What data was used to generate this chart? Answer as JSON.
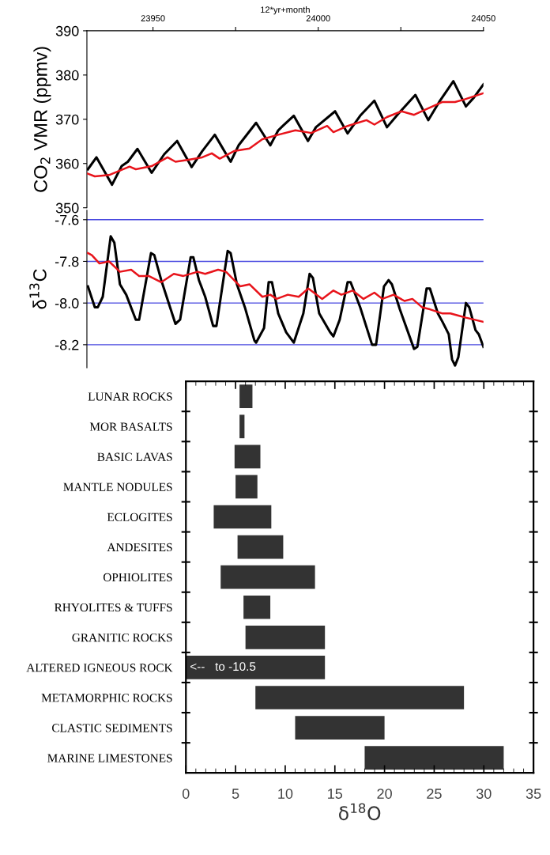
{
  "chart_data": [
    {
      "type": "line",
      "xlabel": "12*yr+month",
      "ylabel": "CO$_{2}$ VMR (ppmv)",
      "xlim": [
        23930,
        24050
      ],
      "xticks": [
        23950,
        {
          "value": 23975,
          "label": null
        },
        24000,
        {
          "value": 24025,
          "label": null
        },
        24050
      ],
      "ylim": [
        350,
        390
      ],
      "yticks": [
        350,
        360,
        370,
        380,
        390
      ],
      "series": [
        {
          "color": "#000000",
          "x": [
            23930.3,
            23932.9,
            23937.6,
            23940.5,
            23942.4,
            23945.3,
            23949.6,
            23953.4,
            23957.3,
            23961.7,
            23964.9,
            23968.7,
            23973.5,
            23975.9,
            23981.2,
            23985.5,
            23987.9,
            23989.3,
            23992.6,
            23996.9,
            23999.3,
            24005.1,
            24008.9,
            24012.7,
            24017.0,
            24020.8,
            24024.2,
            24029.4,
            24033.3,
            24036.6,
            24040.9,
            24044.7,
            24047.1,
            24050
          ],
          "values": [
            358.7,
            361.4,
            355.2,
            359.4,
            360.4,
            363.3,
            357.9,
            362.1,
            365.1,
            359.2,
            362.8,
            366.5,
            360.4,
            364.1,
            369.2,
            364.1,
            367.5,
            368.5,
            370.8,
            365.1,
            368.2,
            371.8,
            366.8,
            370.8,
            374.2,
            368.2,
            371.2,
            375.5,
            369.8,
            373.9,
            378.6,
            372.9,
            374.9,
            377.9
          ]
        },
        {
          "color": "#e8141b",
          "x": [
            23930.3,
            23932.4,
            23936.7,
            23940.0,
            23942.9,
            23944.8,
            23949.6,
            23954.4,
            23956.8,
            23961.1,
            23964.9,
            23967.8,
            23970.2,
            23974.5,
            23979.2,
            23983.1,
            23987.9,
            23993.1,
            23997.9,
            24002.7,
            24004.6,
            24008.9,
            24014.6,
            24017.0,
            24020.8,
            24025.2,
            24029.0,
            24032.8,
            24037.6,
            24041.4,
            24044.3,
            24050
          ],
          "values": [
            357.7,
            357.1,
            357.4,
            358.4,
            359.3,
            358.7,
            359.4,
            361.4,
            360.4,
            360.9,
            361.4,
            362.3,
            361.1,
            362.8,
            363.4,
            365.5,
            366.5,
            367.5,
            366.9,
            368.5,
            367.1,
            368.5,
            369.8,
            368.8,
            370.5,
            371.8,
            371.0,
            372.3,
            373.9,
            373.9,
            374.5,
            375.9
          ]
        }
      ]
    },
    {
      "type": "line",
      "ylabel": "δ$^{13}$C",
      "xlim": [
        23930,
        24050
      ],
      "ylim": [
        -8.31,
        -7.555
      ],
      "yticks": [
        -7.6,
        -7.8,
        {
          "value": -8.0,
          "label": "-8.0"
        },
        -8.2
      ],
      "grid": "y",
      "tick_labels": "y",
      "series": [
        {
          "color": "#000000",
          "x": [
            23930.3,
            23932.4,
            23933.3,
            23934.8,
            23937.2,
            23938.3,
            23940.0,
            23941.9,
            23944.8,
            23945.8,
            23949.4,
            23950.4,
            23952.5,
            23956.8,
            23958.2,
            23961.4,
            23962.2,
            23963.9,
            23965.8,
            23968.2,
            23969.2,
            23972.6,
            23973.5,
            23975.4,
            23977.8,
            23980.7,
            23981.2,
            23983.6,
            23985.0,
            23986.0,
            23987.9,
            23990.3,
            23992.6,
            23995.5,
            23997.4,
            23998.4,
            24000.3,
            24003.6,
            24004.6,
            24006.5,
            24008.9,
            24009.8,
            24012.7,
            24016.3,
            24017.5,
            24019.9,
            24021.3,
            24022.3,
            24024.7,
            24029.0,
            24030.0,
            24032.8,
            24033.8,
            24036.2,
            24037.6,
            24039.5,
            24040.5,
            24041.4,
            24042.4,
            24044.7,
            24045.7,
            24047.6,
            24048.6,
            24050
          ],
          "values": [
            -7.92,
            -8.02,
            -8.02,
            -7.97,
            -7.68,
            -7.71,
            -7.91,
            -7.96,
            -8.08,
            -8.08,
            -7.76,
            -7.77,
            -7.89,
            -8.1,
            -8.08,
            -7.78,
            -7.78,
            -7.89,
            -7.97,
            -8.11,
            -8.11,
            -7.75,
            -7.76,
            -7.91,
            -8.02,
            -8.18,
            -8.19,
            -8.12,
            -7.9,
            -7.9,
            -8.05,
            -8.14,
            -8.19,
            -8.05,
            -7.86,
            -7.88,
            -8.05,
            -8.14,
            -8.16,
            -8.08,
            -7.9,
            -7.9,
            -8.02,
            -8.2,
            -8.2,
            -7.92,
            -7.89,
            -7.91,
            -8.03,
            -8.22,
            -8.21,
            -7.93,
            -7.93,
            -8.05,
            -8.09,
            -8.15,
            -8.27,
            -8.3,
            -8.26,
            -8.0,
            -8.02,
            -8.13,
            -8.15,
            -8.21
          ]
        },
        {
          "color": "#e8141b",
          "x": [
            23930.3,
            23931.5,
            23933.8,
            23936.7,
            23940.0,
            23943.4,
            23945.8,
            23948.7,
            23952.5,
            23956.3,
            23959.2,
            23963.5,
            23965.8,
            23969.7,
            23972.1,
            23976.4,
            23979.2,
            23983.1,
            23985.5,
            23987.4,
            23990.8,
            23994.1,
            23997.0,
            24001.2,
            24004.6,
            24007.0,
            24010.4,
            24013.7,
            24017.0,
            24019.4,
            24022.8,
            24026.1,
            24028.5,
            24031.4,
            24033.8,
            24037.6,
            24040.0,
            24042.4,
            24044.7,
            24050
          ],
          "values": [
            -7.76,
            -7.77,
            -7.81,
            -7.8,
            -7.85,
            -7.84,
            -7.87,
            -7.87,
            -7.9,
            -7.86,
            -7.87,
            -7.85,
            -7.86,
            -7.84,
            -7.85,
            -7.92,
            -7.91,
            -7.97,
            -7.96,
            -7.98,
            -7.96,
            -7.97,
            -7.93,
            -7.98,
            -7.94,
            -7.96,
            -7.94,
            -7.98,
            -7.95,
            -7.98,
            -7.96,
            -7.99,
            -7.98,
            -8.02,
            -8.03,
            -8.05,
            -8.05,
            -8.06,
            -8.07,
            -8.09
          ]
        }
      ]
    },
    {
      "type": "bar",
      "orientation": "horizontal",
      "xlabel": "δ$^{18}$O",
      "xlim": [
        0,
        35
      ],
      "xticks": [
        0,
        5,
        10,
        15,
        20,
        25,
        30,
        35
      ],
      "color": "#333333",
      "categories": [
        "LUNAR ROCKS",
        "MOR BASALTS",
        "BASIC LAVAS",
        "MANTLE NODULES",
        "ECLOGITES",
        "ANDESITES",
        "OPHIOLITES",
        "RHYOLITES & TUFFS",
        "GRANITIC ROCKS",
        "ALTERED IGNEOUS ROCK",
        "METAMORPHIC ROCKS",
        "CLASTIC SEDIMENTS",
        "MARINE LIMESTONES"
      ],
      "base": [
        5.4,
        5.4,
        4.9,
        5.0,
        2.8,
        5.2,
        3.5,
        5.8,
        6.0,
        0,
        7.0,
        11.0,
        18.0
      ],
      "values": [
        1.3,
        0.5,
        2.6,
        2.2,
        5.8,
        4.6,
        9.5,
        2.7,
        8.0,
        14.0,
        21.0,
        9.0,
        14.0
      ],
      "annotations": [
        {
          "text": "<--   to -10.5",
          "x": 0.4,
          "y": "ALTERED IGNEOUS ROCK"
        }
      ]
    }
  ]
}
